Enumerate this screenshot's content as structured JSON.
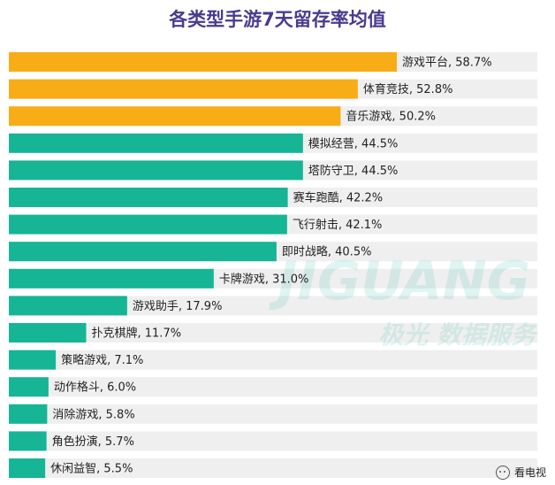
{
  "chart_data": {
    "type": "bar",
    "orientation": "horizontal",
    "title": "各类型手游7天留存率均值",
    "unit": "%",
    "xlim": [
      0,
      60
    ],
    "grid": false,
    "categories": [
      "游戏平台",
      "体育竞技",
      "音乐游戏",
      "模拟经营",
      "塔防守卫",
      "赛车跑酷",
      "飞行射击",
      "即时战略",
      "卡牌游戏",
      "游戏助手",
      "扑克棋牌",
      "策略游戏",
      "动作格斗",
      "消除游戏",
      "角色扮演",
      "休闲益智"
    ],
    "values": [
      58.7,
      52.8,
      50.2,
      44.5,
      44.5,
      42.2,
      42.1,
      40.5,
      31.0,
      17.9,
      11.7,
      7.1,
      6.0,
      5.8,
      5.7,
      5.5
    ],
    "labels": [
      "游戏平台, 58.7%",
      "体育竞技, 52.8%",
      "音乐游戏, 50.2%",
      "模拟经营, 44.5%",
      "塔防守卫, 44.5%",
      "赛车跑酷, 42.2%",
      "飞行射击, 42.1%",
      "即时战略, 40.5%",
      "卡牌游戏, 31.0%",
      "游戏助手, 17.9%",
      "扑克棋牌, 11.7%",
      "策略游戏, 7.1%",
      "动作格斗, 6.0%",
      "消除游戏, 5.8%",
      "角色扮演, 5.7%",
      "休闲益智, 5.5%"
    ],
    "highlight_count": 3,
    "colors": {
      "highlight": "#f8ad16",
      "normal": "#15b596",
      "track": "#efefef",
      "title": "#4b3a8f"
    }
  },
  "watermark": {
    "brand": "JIGUANG",
    "tagline": "极光 数据服务"
  },
  "footer": {
    "account": "看电视",
    "icon": "wechat-icon"
  }
}
